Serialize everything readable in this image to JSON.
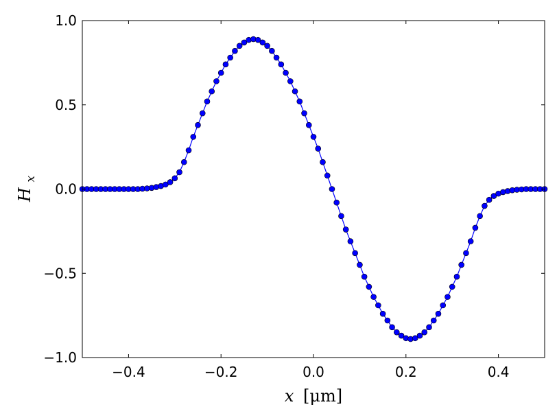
{
  "chart_data": {
    "type": "line",
    "title": "",
    "xlabel_var": "x",
    "xlabel_unit": "[μm]",
    "ylabel_var": "H",
    "ylabel_sub": "x",
    "xlim": [
      -0.5,
      0.5
    ],
    "ylim": [
      -1.0,
      1.0
    ],
    "x_ticks": [
      -0.4,
      -0.2,
      0.0,
      0.2,
      0.4
    ],
    "x_tick_labels": [
      "−0.4",
      "−0.2",
      "0.0",
      "0.2",
      "0.4"
    ],
    "y_ticks": [
      -1.0,
      -0.5,
      0.0,
      0.5,
      1.0
    ],
    "y_tick_labels": [
      "−1.0",
      "−0.5",
      "0.0",
      "0.5",
      "1.0"
    ],
    "grid": false,
    "legend": "none",
    "series": [
      {
        "marker": "circle",
        "color": "#0000ff",
        "x": [
          -0.5,
          -0.49,
          -0.48,
          -0.47,
          -0.46,
          -0.45,
          -0.44,
          -0.43,
          -0.42,
          -0.41,
          -0.4,
          -0.39,
          -0.38,
          -0.37,
          -0.36,
          -0.35,
          -0.34,
          -0.33,
          -0.32,
          -0.31,
          -0.3,
          -0.29,
          -0.28,
          -0.27,
          -0.26,
          -0.25,
          -0.24,
          -0.23,
          -0.22,
          -0.21,
          -0.2,
          -0.19,
          -0.18,
          -0.17,
          -0.16,
          -0.15,
          -0.14,
          -0.13,
          -0.12,
          -0.11,
          -0.1,
          -0.09,
          -0.08,
          -0.07,
          -0.06,
          -0.05,
          -0.04,
          -0.03,
          -0.02,
          -0.01,
          0.0,
          0.01,
          0.02,
          0.03,
          0.04,
          0.05,
          0.06,
          0.07,
          0.08,
          0.09,
          0.1,
          0.11,
          0.12,
          0.13,
          0.14,
          0.15,
          0.16,
          0.17,
          0.18,
          0.19,
          0.2,
          0.21,
          0.22,
          0.23,
          0.24,
          0.25,
          0.26,
          0.27,
          0.28,
          0.29,
          0.3,
          0.31,
          0.32,
          0.33,
          0.34,
          0.35,
          0.36,
          0.37,
          0.38,
          0.39,
          0.4,
          0.41,
          0.42,
          0.43,
          0.44,
          0.45,
          0.46,
          0.47,
          0.48,
          0.49,
          0.5
        ],
        "y": [
          0.0,
          0.0,
          0.0,
          0.0,
          0.0,
          0.0,
          0.0,
          0.0,
          0.0,
          0.0,
          0.0,
          0.0,
          0.0,
          0.002,
          0.004,
          0.007,
          0.012,
          0.018,
          0.027,
          0.041,
          0.064,
          0.1,
          0.16,
          0.23,
          0.31,
          0.38,
          0.45,
          0.52,
          0.58,
          0.64,
          0.69,
          0.74,
          0.78,
          0.82,
          0.85,
          0.87,
          0.885,
          0.89,
          0.885,
          0.87,
          0.85,
          0.82,
          0.78,
          0.74,
          0.69,
          0.64,
          0.58,
          0.52,
          0.45,
          0.38,
          0.31,
          0.24,
          0.16,
          0.08,
          0.0,
          -0.08,
          -0.16,
          -0.24,
          -0.31,
          -0.38,
          -0.45,
          -0.52,
          -0.58,
          -0.64,
          -0.69,
          -0.74,
          -0.78,
          -0.82,
          -0.85,
          -0.87,
          -0.885,
          -0.89,
          -0.885,
          -0.87,
          -0.85,
          -0.82,
          -0.78,
          -0.74,
          -0.69,
          -0.64,
          -0.58,
          -0.52,
          -0.45,
          -0.38,
          -0.31,
          -0.23,
          -0.16,
          -0.1,
          -0.064,
          -0.041,
          -0.027,
          -0.018,
          -0.012,
          -0.007,
          -0.004,
          -0.002,
          0.0,
          0.0,
          0.0,
          0.0,
          0.0
        ]
      }
    ]
  }
}
